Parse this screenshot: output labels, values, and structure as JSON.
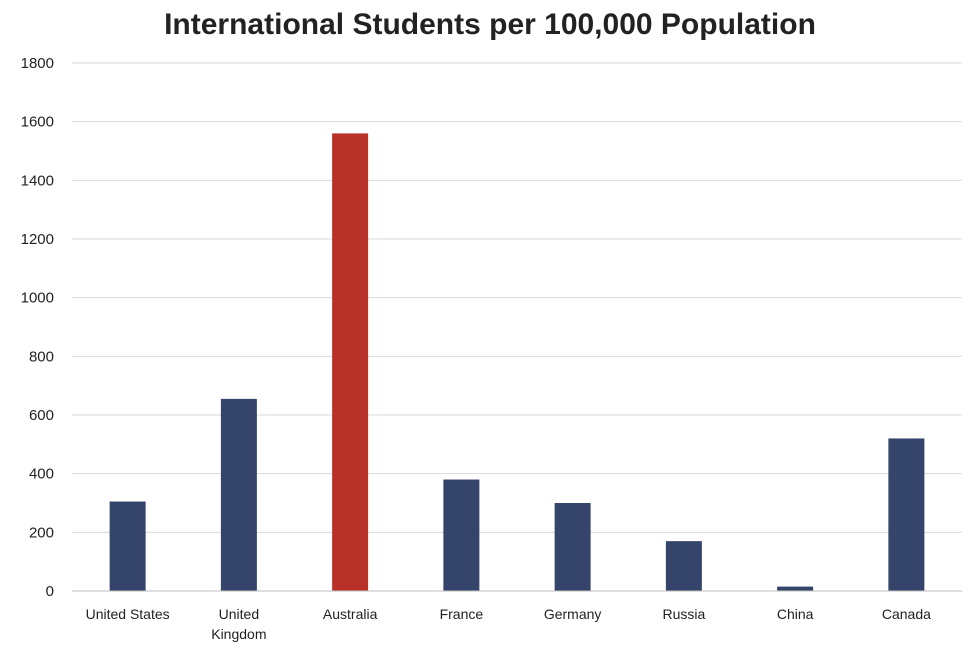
{
  "chart_data": {
    "type": "bar",
    "title": "International Students per 100,000 Population",
    "xlabel": "",
    "ylabel": "",
    "categories": [
      "United States",
      "United Kingdom",
      "Australia",
      "France",
      "Germany",
      "Russia",
      "China",
      "Canada"
    ],
    "category_label_lines": [
      [
        "United States"
      ],
      [
        "United",
        "Kingdom"
      ],
      [
        "Australia"
      ],
      [
        "France"
      ],
      [
        "Germany"
      ],
      [
        "Russia"
      ],
      [
        "China"
      ],
      [
        "Canada"
      ]
    ],
    "values": [
      305,
      655,
      1560,
      380,
      300,
      170,
      15,
      520
    ],
    "ylim": [
      0,
      1800
    ],
    "yticks": [
      0,
      200,
      400,
      600,
      800,
      1000,
      1200,
      1400,
      1600,
      1800
    ],
    "grid": true,
    "legend": "none",
    "colors": {
      "default": "#34446b",
      "highlight": "#b83128"
    },
    "highlight_category": "Australia"
  }
}
